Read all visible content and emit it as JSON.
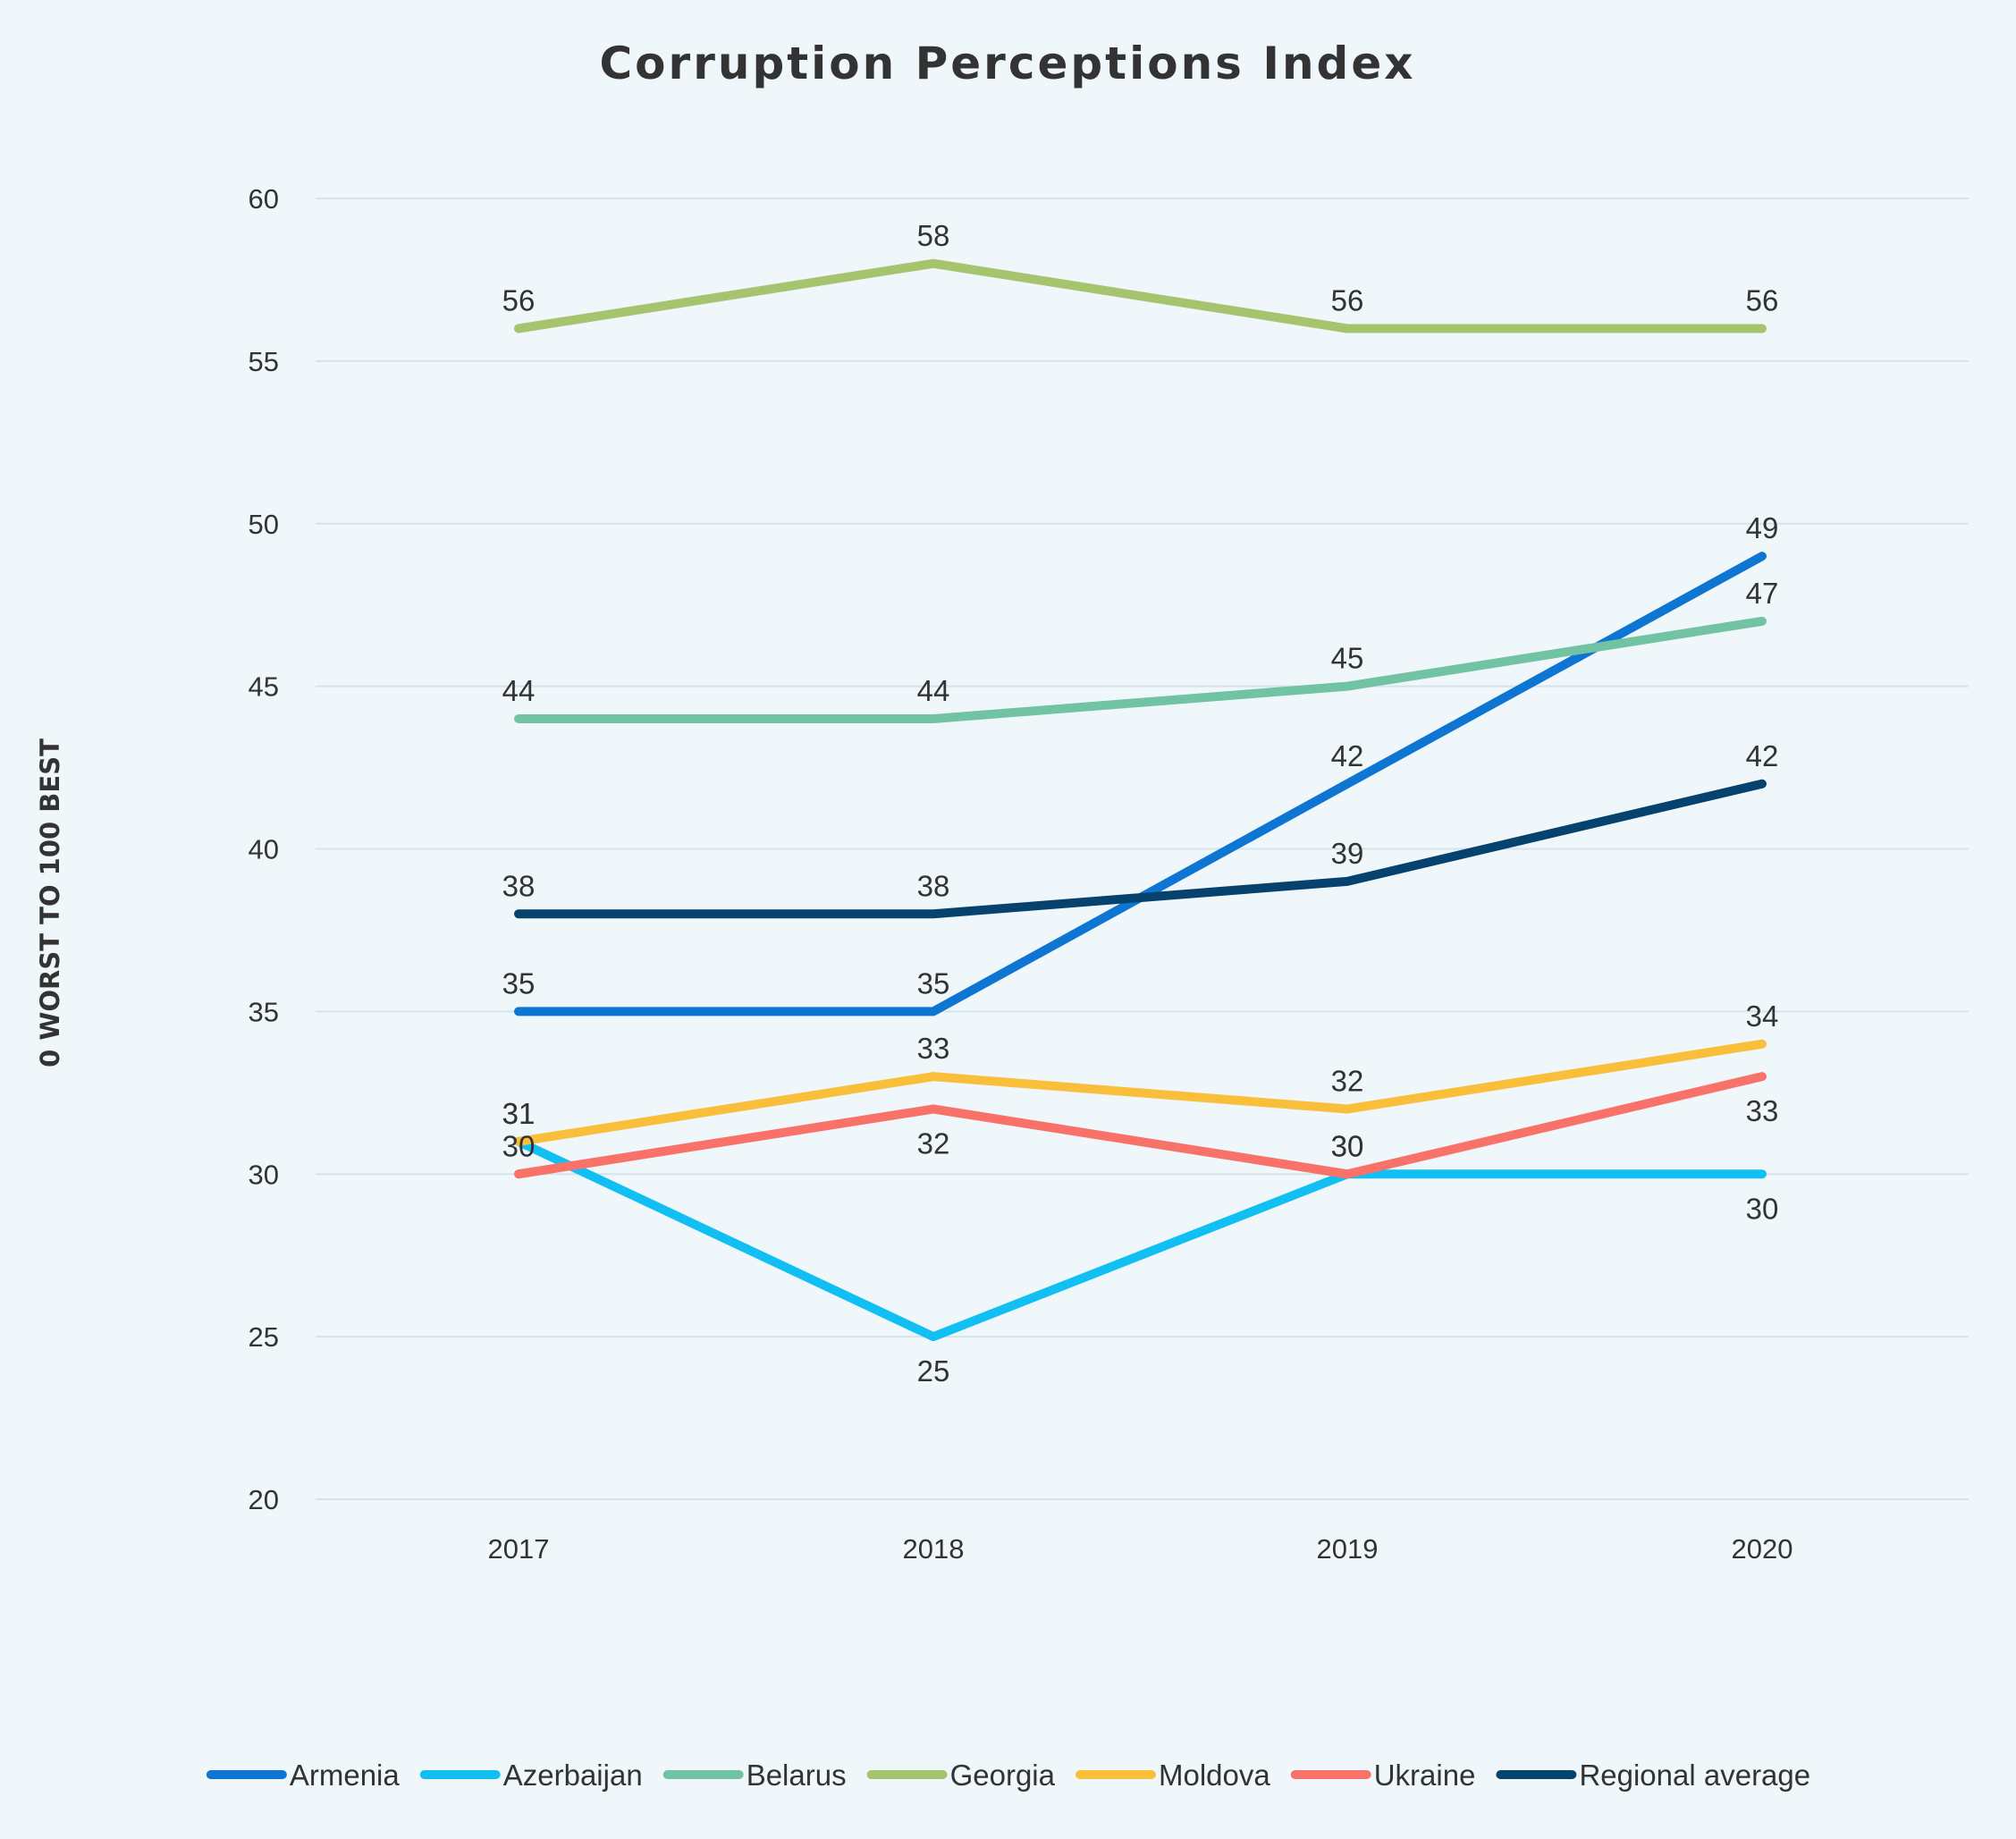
{
  "chart_data": {
    "type": "line",
    "title": "Corruption Perceptions Index",
    "xlabel": "",
    "ylabel": "0 WORST TO 100 BEST",
    "categories": [
      "2017",
      "2018",
      "2019",
      "2020"
    ],
    "ylim": [
      20,
      60
    ],
    "yticks": [
      20,
      25,
      30,
      35,
      40,
      45,
      50,
      55,
      60
    ],
    "grid": true,
    "legend": "bottom",
    "series": [
      {
        "name": "Armenia",
        "color": "#0e76d2",
        "values": [
          35,
          35,
          42,
          49
        ],
        "label_pos": [
          "above",
          "above",
          "above",
          "above"
        ]
      },
      {
        "name": "Azerbaijan",
        "color": "#12bff2",
        "values": [
          31,
          25,
          30,
          30
        ],
        "label_pos": [
          "above",
          "below",
          "above",
          "below"
        ]
      },
      {
        "name": "Belarus",
        "color": "#72c3a4",
        "values": [
          44,
          44,
          45,
          47
        ],
        "label_pos": [
          "above",
          "above",
          "above",
          "above"
        ]
      },
      {
        "name": "Georgia",
        "color": "#a6c36e",
        "values": [
          56,
          58,
          56,
          56
        ],
        "label_pos": [
          "above",
          "above",
          "above",
          "above"
        ]
      },
      {
        "name": "Moldova",
        "color": "#fabf3a",
        "values": [
          31,
          33,
          32,
          34
        ],
        "label_pos": [
          "above",
          "above",
          "above",
          "above"
        ]
      },
      {
        "name": "Ukraine",
        "color": "#f9726a",
        "values": [
          30,
          32,
          30,
          33
        ],
        "label_pos": [
          "above",
          "below",
          "above",
          "below"
        ]
      },
      {
        "name": "Regional average",
        "color": "#05426d",
        "values": [
          38,
          38,
          39,
          42
        ],
        "label_pos": [
          "above",
          "above",
          "above",
          "above"
        ]
      }
    ]
  }
}
